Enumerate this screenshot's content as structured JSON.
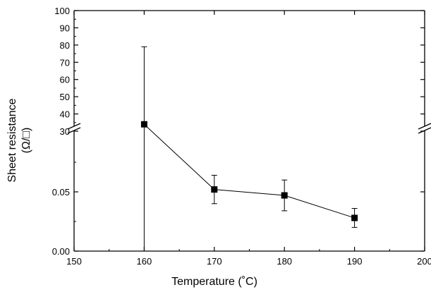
{
  "chart_data": {
    "type": "scatter",
    "title": "",
    "xlabel": "Temperature (˚C)",
    "ylabel_line1": "Sheet resistance",
    "ylabel_line2": "(Ω/□)",
    "xlim": [
      150,
      200
    ],
    "x_ticks": [
      150,
      160,
      170,
      180,
      190,
      200
    ],
    "y_axis_broken": true,
    "y_lower_segment": {
      "range": [
        0,
        0.1
      ],
      "ticks": [
        0.0,
        0.05
      ],
      "tick_labels": [
        "0.00",
        "0.05"
      ]
    },
    "y_upper_segment": {
      "range": [
        30,
        100
      ],
      "ticks": [
        30,
        40,
        50,
        60,
        70,
        80,
        90,
        100
      ],
      "tick_labels": [
        "30",
        "40",
        "50",
        "60",
        "70",
        "80",
        "90",
        "100"
      ]
    },
    "grid": false,
    "legend": "none",
    "marker": "square",
    "line_connected": true,
    "color": "#000000",
    "points": [
      {
        "x": 160,
        "y": 34,
        "err_low": 0,
        "err_high": 79
      },
      {
        "x": 170,
        "y": 0.052,
        "err_low": 0.04,
        "err_high": 0.064
      },
      {
        "x": 180,
        "y": 0.047,
        "err_low": 0.034,
        "err_high": 0.06
      },
      {
        "x": 190,
        "y": 0.028,
        "err_low": 0.02,
        "err_high": 0.036
      }
    ]
  }
}
